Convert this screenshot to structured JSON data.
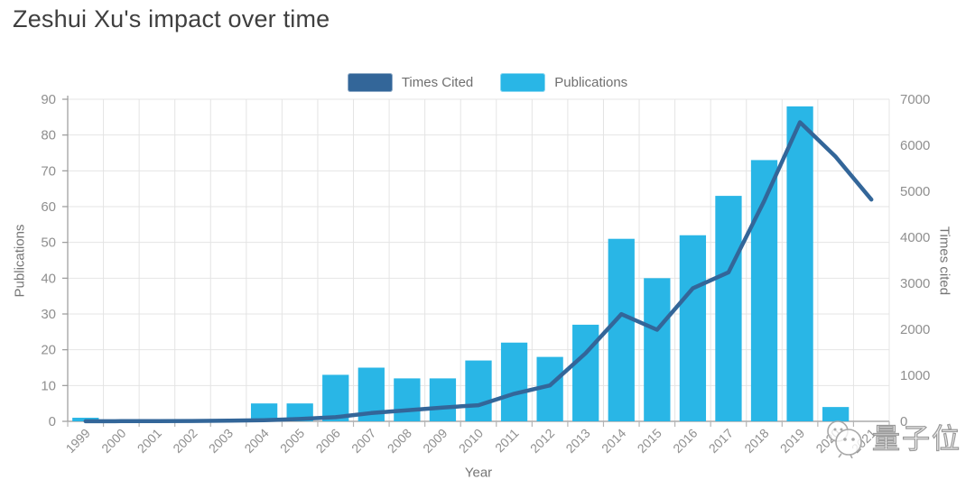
{
  "page": {
    "title": "Zeshui Xu's impact over time"
  },
  "legend": {
    "items": [
      {
        "label": "Times Cited",
        "color": "#336699"
      },
      {
        "label": "Publications",
        "color": "#29b6e6"
      }
    ]
  },
  "axes": {
    "left_label": "Publications",
    "right_label": "Times cited",
    "x_label": "Year"
  },
  "watermark": {
    "text": "量子位"
  },
  "chart_data": {
    "type": "bar",
    "title": "Zeshui Xu's impact over time",
    "categories": [
      "1999",
      "2000",
      "2001",
      "2002",
      "2003",
      "2004",
      "2005",
      "2006",
      "2007",
      "2008",
      "2009",
      "2010",
      "2011",
      "2012",
      "2013",
      "2014",
      "2015",
      "2016",
      "2017",
      "2018",
      "2019",
      "2020",
      "2021"
    ],
    "series": [
      {
        "name": "Publications",
        "type": "bar",
        "axis": "left",
        "color": "#29b6e6",
        "values": [
          1,
          0,
          0,
          0,
          0,
          5,
          5,
          13,
          15,
          12,
          12,
          17,
          22,
          18,
          27,
          51,
          40,
          52,
          63,
          73,
          88,
          4,
          0
        ]
      },
      {
        "name": "Times Cited",
        "type": "line",
        "axis": "right",
        "color": "#336699",
        "values": [
          2,
          3,
          5,
          8,
          14,
          25,
          50,
          90,
          180,
          240,
          300,
          350,
          600,
          780,
          1480,
          2330,
          1990,
          2890,
          3240,
          4790,
          6500,
          5750,
          4820
        ]
      }
    ],
    "left_axis": {
      "label": "Publications",
      "min": 0,
      "max": 90,
      "step": 10
    },
    "right_axis": {
      "label": "Times cited",
      "min": 0,
      "max": 7000,
      "step": 1000
    },
    "x_axis": {
      "label": "Year"
    },
    "grid": true,
    "legend_position": "top"
  }
}
